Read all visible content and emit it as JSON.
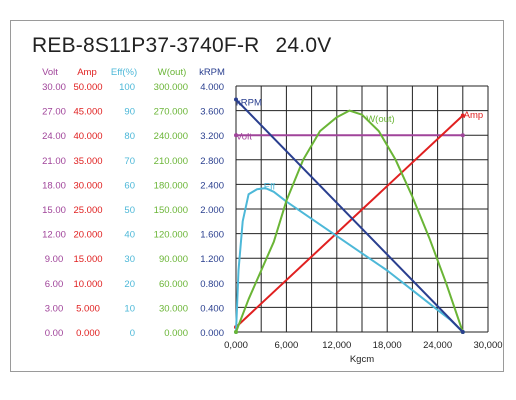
{
  "title": {
    "model": "REB-8S11P37-3740F-R",
    "voltage": "24.0V"
  },
  "colors": {
    "volt": "#a0449a",
    "amp": "#e02020",
    "eff": "#4db8d8",
    "wout": "#6ab536",
    "krpm": "#2a3f8f",
    "grid": "#222222"
  },
  "chart_data": {
    "type": "line",
    "xlabel": "Kgcm",
    "xlim": [
      0,
      30000
    ],
    "x_ticks": [
      "0,000",
      "6,000",
      "12,000",
      "18,000",
      "24,000",
      "30,000"
    ],
    "y_axes": [
      {
        "name": "Volt",
        "color": "volt",
        "ticks": [
          "0.00",
          "3.00",
          "6.00",
          "9.00",
          "12.00",
          "15.00",
          "18.00",
          "21.00",
          "24.00",
          "27.00",
          "30.00"
        ]
      },
      {
        "name": "Amp",
        "color": "amp",
        "ticks": [
          "0.000",
          "5.000",
          "10.000",
          "15.000",
          "20.000",
          "25.000",
          "30.000",
          "35.000",
          "40.000",
          "45.000",
          "50.000"
        ]
      },
      {
        "name": "Eff(%)",
        "color": "eff",
        "ticks": [
          "0",
          "10",
          "20",
          "30",
          "40",
          "50",
          "60",
          "70",
          "80",
          "90",
          "100"
        ]
      },
      {
        "name": "W(out)",
        "color": "wout",
        "ticks": [
          "0.000",
          "30.000",
          "60.000",
          "90.000",
          "120.000",
          "150.000",
          "180.000",
          "210.000",
          "240.000",
          "270.000",
          "300.000"
        ]
      },
      {
        "name": "kRPM",
        "color": "krpm",
        "ticks": [
          "0.000",
          "0.400",
          "0.800",
          "1.200",
          "1.600",
          "2.000",
          "2.400",
          "2.800",
          "3.200",
          "3.600",
          "4.000"
        ]
      }
    ],
    "series": [
      {
        "name": "Volt",
        "color": "volt",
        "points": [
          [
            0,
            24.0
          ],
          [
            27000,
            24.0
          ]
        ],
        "label_at": [
          0,
          23.5
        ]
      },
      {
        "name": "Amp",
        "color": "amp",
        "points": [
          [
            0,
            1.0
          ],
          [
            27000,
            44.0
          ]
        ],
        "label_at": [
          27100,
          43.5
        ]
      },
      {
        "name": "Eff",
        "color": "eff",
        "points": [
          [
            0,
            0
          ],
          [
            300,
            25
          ],
          [
            800,
            45
          ],
          [
            1500,
            56
          ],
          [
            2500,
            58
          ],
          [
            3500,
            58.5
          ],
          [
            4500,
            57
          ],
          [
            6000,
            53
          ],
          [
            9000,
            46
          ],
          [
            12000,
            39
          ],
          [
            15000,
            32
          ],
          [
            18000,
            25
          ],
          [
            21000,
            17
          ],
          [
            24000,
            9
          ],
          [
            25500,
            5
          ],
          [
            27000,
            0
          ]
        ],
        "label_at": [
          3300,
          58
        ]
      },
      {
        "name": "W(out)",
        "color": "wout",
        "points": [
          [
            0,
            0
          ],
          [
            1500,
            40
          ],
          [
            3000,
            75
          ],
          [
            4500,
            110
          ],
          [
            6000,
            160
          ],
          [
            8000,
            210
          ],
          [
            10000,
            245
          ],
          [
            12000,
            262
          ],
          [
            13500,
            270
          ],
          [
            15000,
            265
          ],
          [
            17000,
            245
          ],
          [
            19000,
            210
          ],
          [
            21000,
            165
          ],
          [
            23000,
            115
          ],
          [
            25000,
            60
          ],
          [
            27000,
            0
          ]
        ],
        "label_at": [
          15500,
          256
        ]
      },
      {
        "name": "kRPM",
        "color": "krpm",
        "points": [
          [
            0,
            3.78
          ],
          [
            27000,
            0.0
          ]
        ],
        "label_at": [
          0,
          3.68
        ]
      }
    ]
  }
}
